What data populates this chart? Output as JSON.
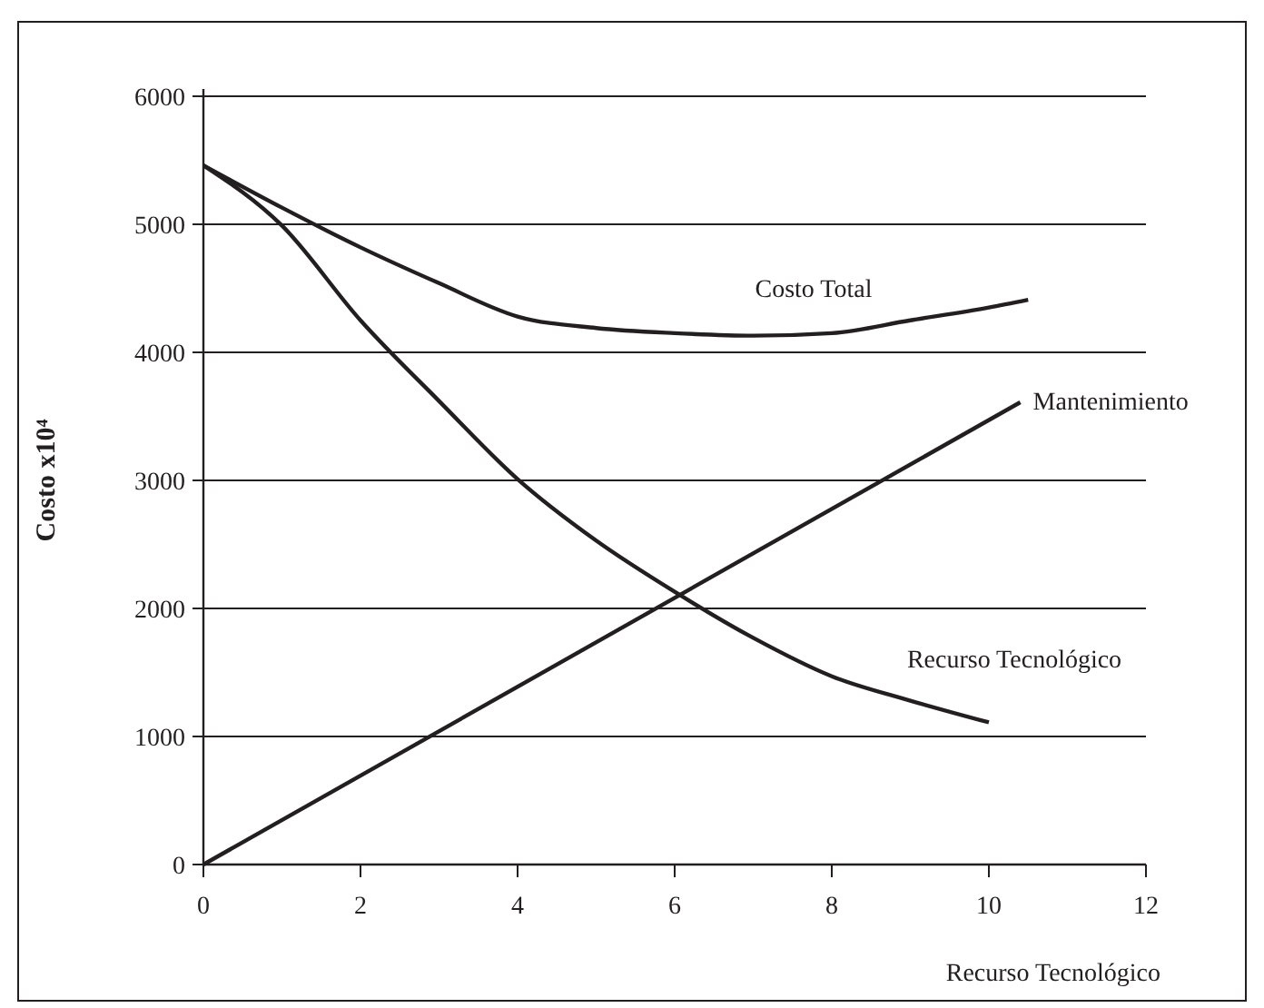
{
  "chart_data": {
    "type": "line",
    "xlabel": "Recurso Tecnológico",
    "ylabel": "Costo x10⁴",
    "xlim": [
      0,
      12
    ],
    "xticks": [
      0,
      2,
      4,
      6,
      8,
      10,
      12
    ],
    "ylim": [
      0,
      6000
    ],
    "yticks": [
      0,
      1000,
      2000,
      3000,
      4000,
      5000,
      6000
    ],
    "grid": "y",
    "marker": "none",
    "line_style": "solid",
    "series": [
      {
        "name": "Costo Total",
        "color": "#231f20",
        "x": [
          0,
          1,
          2,
          3,
          4,
          5,
          6,
          7,
          8,
          9,
          10,
          10.5
        ],
        "values": [
          5460,
          5130,
          4820,
          4540,
          4280,
          4190,
          4150,
          4130,
          4150,
          4250,
          4350,
          4410
        ]
      },
      {
        "name": "Mantenimiento",
        "color": "#231f20",
        "x": [
          0,
          10.4
        ],
        "values": [
          0,
          3610
        ]
      },
      {
        "name": "Recurso Tecnológico",
        "color": "#231f20",
        "x": [
          0,
          1,
          2,
          3,
          4,
          5,
          6,
          7,
          8,
          9,
          10
        ],
        "values": [
          5460,
          4990,
          4250,
          3620,
          3010,
          2530,
          2130,
          1770,
          1470,
          1280,
          1110
        ]
      }
    ]
  }
}
